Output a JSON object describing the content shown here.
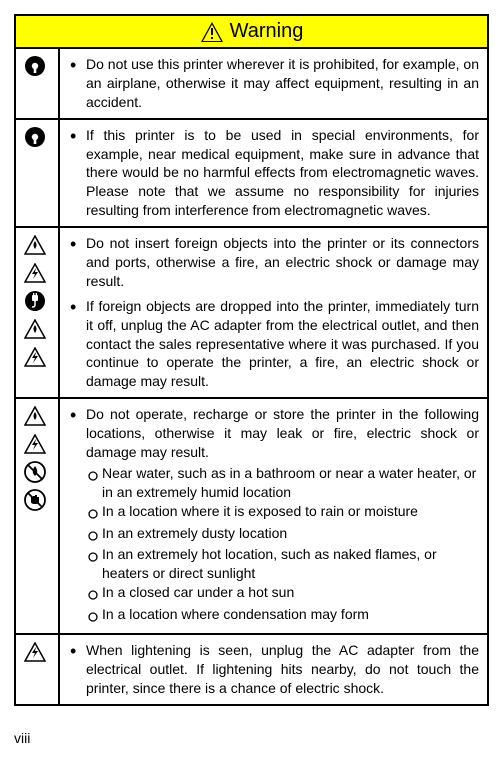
{
  "header": {
    "label": "Warning",
    "bg_color": "#ffff00",
    "text_color": "#000000",
    "fontsize": 20
  },
  "rows": [
    {
      "icons": [
        "mandatory"
      ],
      "items": [
        {
          "text": "Do not use this printer wherever it is prohibited, for example, on an airplane, otherwise it may affect equipment, resulting in an accident."
        }
      ]
    },
    {
      "icons": [
        "mandatory"
      ],
      "items": [
        {
          "text": "If this printer is to be used in special environments, for example, near medical equipment, make sure in advance that there would be no harmful effects from electromagnetic waves. Please note that we assume no responsibility for injuries resulting from interference from electromagnetic waves."
        }
      ]
    },
    {
      "icons": [
        "fire-warn",
        "shock-warn",
        "unplug",
        "fire-warn",
        "shock-warn"
      ],
      "items": [
        {
          "text": "Do not insert foreign objects into the printer or its connectors and ports, otherwise a fire, an electric shock or damage may result."
        },
        {
          "text": "If foreign objects are dropped into the printer, immediately turn it off, unplug the AC adapter from the electrical outlet, and then contact the sales representative where it was purchased. If you continue to operate the printer, a fire, an electric shock or damage may result."
        }
      ]
    },
    {
      "icons": [
        "fire-warn",
        "shock-warn",
        "no-water",
        "no-wet"
      ],
      "items": [
        {
          "text": "Do not operate, recharge or store the printer in the following locations, otherwise it may leak or fire, electric shock or damage may result.",
          "sub": [
            "Near water, such as in a bathroom or near a water heater, or in an extremely humid location",
            "In a location where it is exposed to rain or moisture",
            "In an extremely dusty location",
            "In an extremely hot location, such as naked flames, or heaters or direct sunlight",
            "In a closed car under a hot sun",
            "In a location where condensation may form"
          ]
        }
      ]
    },
    {
      "icons": [
        "shock-warn"
      ],
      "items": [
        {
          "text": "When lightening is seen, unplug the AC adapter from the electrical outlet. If lightening hits nearby, do not touch the printer, since there is a chance of electric shock."
        }
      ]
    }
  ],
  "pageNumber": "viii",
  "colors": {
    "border": "#000000",
    "body_text": "#000000",
    "background": "#ffffff"
  },
  "typography": {
    "body_fontsize": 14,
    "header_fontsize": 20,
    "font_family": "Arial"
  }
}
